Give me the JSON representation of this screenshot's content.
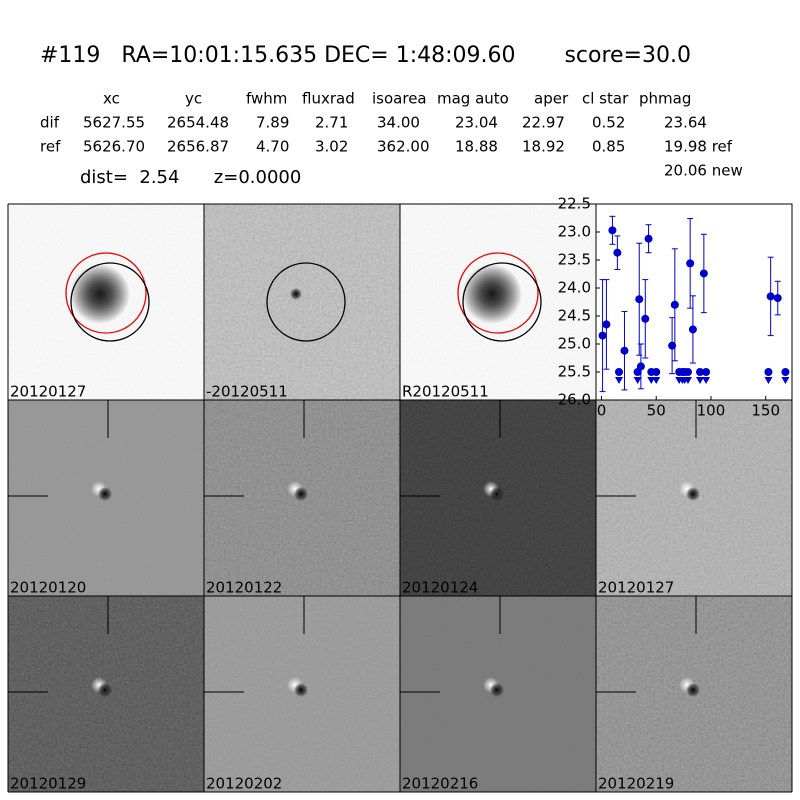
{
  "header": {
    "title": "#119   RA=10:01:15.635 DEC= 1:48:09.60       score=30.0"
  },
  "table": {
    "columns": [
      "xc",
      "yc",
      "fwhm",
      "fluxrad",
      "isoarea",
      "mag auto",
      "aper",
      "cl star",
      "phmag"
    ],
    "rows": [
      [
        "dif",
        "5627.55",
        "2654.48",
        "7.89",
        "2.71",
        "34.00",
        "23.04",
        "22.97",
        "0.52",
        "23.64"
      ],
      [
        "ref",
        "5626.70",
        "2656.87",
        "4.70",
        "3.02",
        "362.00",
        "18.88",
        "18.92",
        "0.85",
        "19.98 ref"
      ]
    ],
    "extra": "20.06 new"
  },
  "distance_line": "dist=  2.54      z=0.0000",
  "panels": [
    {
      "label": "20120127",
      "label_color": "#000000"
    },
    {
      "label": "-20120511",
      "label_color": "#000000"
    },
    {
      "label": "R20120511",
      "label_color": "#000000"
    },
    {
      "label": "20120120",
      "label_color": "#000000"
    },
    {
      "label": "20120122",
      "label_color": "#000000"
    },
    {
      "label": "20120124",
      "label_color": "#000000"
    },
    {
      "label": "20120127",
      "label_color": "#ff0000"
    },
    {
      "label": "20120129",
      "label_color": "#000000"
    },
    {
      "label": "20120202",
      "label_color": "#000000"
    },
    {
      "label": "20120216",
      "label_color": "#000000"
    },
    {
      "label": "20120219",
      "label_color": "#000000"
    }
  ],
  "chart_data": {
    "type": "errorbar",
    "color": "#0000cc",
    "x": [
      1,
      4.5,
      10,
      14.5,
      21,
      34.5,
      36,
      40,
      43,
      64.5,
      67,
      81,
      83.5,
      93.5,
      154.5,
      161
    ],
    "values": [
      24.85,
      24.65,
      22.97,
      23.37,
      25.12,
      24.2,
      25.4,
      24.55,
      23.12,
      25.03,
      24.3,
      23.56,
      24.74,
      23.74,
      24.15,
      24.18
    ],
    "errors": [
      1.0,
      0.8,
      0.25,
      0.3,
      0.7,
      1.0,
      0.4,
      0.7,
      0.25,
      0.5,
      1.0,
      0.8,
      0.6,
      0.7,
      0.7,
      0.3
    ],
    "limits": {
      "x": [
        16,
        33,
        45.5,
        50,
        71,
        74,
        76,
        79,
        90,
        95.5,
        152.5,
        168
      ],
      "values": [
        25.5,
        25.5,
        25.5,
        25.5,
        25.5,
        25.5,
        25.5,
        25.5,
        25.5,
        25.5,
        25.5,
        25.5
      ]
    },
    "xlim": [
      -5,
      174
    ],
    "xticks": [
      0,
      50,
      100,
      150
    ],
    "ylim": [
      26.0,
      22.5
    ],
    "yinverted": true,
    "yticks": [
      {
        "value": 22.5,
        "label": "22.5"
      },
      {
        "value": 23.0,
        "label": "23.0"
      },
      {
        "value": 23.5,
        "label": "23.5"
      },
      {
        "value": 24.0,
        "label": "24.0"
      },
      {
        "value": 24.5,
        "label": "24.5"
      },
      {
        "value": 25.0,
        "label": "25.0"
      },
      {
        "value": 25.5,
        "label": "25.5"
      },
      {
        "value": 26.0,
        "label": "26.0"
      }
    ]
  }
}
